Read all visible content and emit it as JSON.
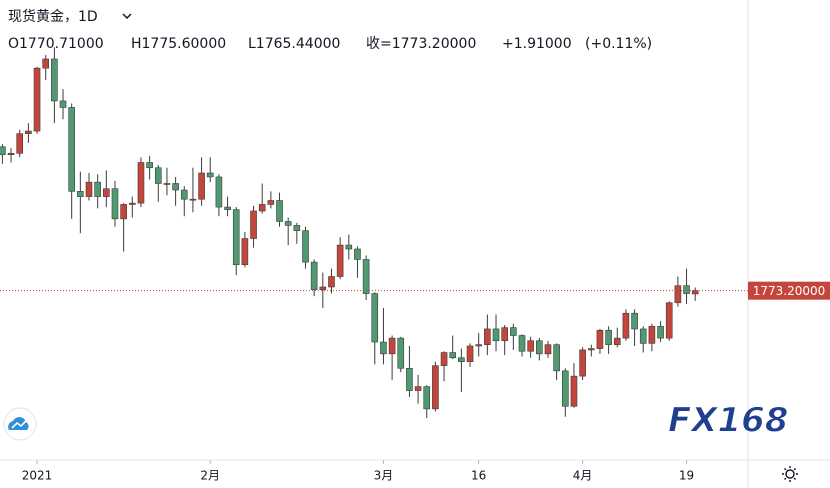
{
  "header": {
    "symbol": "现货黄金，1D",
    "open": "O1770.71000",
    "high": "H1775.60000",
    "low": "L1765.44000",
    "close": "收=1773.20000",
    "change": "+1.91000",
    "change_pct": "(+0.11%)"
  },
  "logo": "FX168",
  "chart_data": {
    "type": "candlestick",
    "categories": [
      null,
      null,
      null,
      null,
      "2021",
      null,
      null,
      null,
      null,
      null,
      null,
      null,
      null,
      null,
      null,
      null,
      null,
      null,
      null,
      null,
      null,
      null,
      null,
      null,
      "2月",
      null,
      null,
      null,
      null,
      null,
      null,
      null,
      null,
      null,
      null,
      null,
      null,
      null,
      null,
      null,
      null,
      null,
      null,
      null,
      "3月",
      null,
      null,
      null,
      null,
      null,
      null,
      null,
      null,
      null,
      null,
      "16",
      null,
      null,
      null,
      null,
      null,
      null,
      null,
      null,
      null,
      null,
      null,
      "4月",
      null,
      null,
      null,
      null,
      null,
      null,
      null,
      null,
      null,
      null,
      null,
      "19",
      null
    ],
    "open": [
      1883,
      1877,
      1878,
      1893,
      1895,
      1943,
      1950,
      1918,
      1913,
      1849,
      1845,
      1856,
      1845,
      1851,
      1828,
      1839,
      1840,
      1871,
      1867,
      1855,
      1855,
      1850,
      1843,
      1843,
      1863,
      1860,
      1837,
      1835,
      1793,
      1813,
      1834,
      1839,
      1842,
      1826,
      1823,
      1819,
      1795,
      1774,
      1776,
      1784,
      1808,
      1805,
      1797,
      1771,
      1734,
      1725,
      1737,
      1714,
      1697,
      1700,
      1683,
      1716,
      1726,
      1722,
      1719,
      1731,
      1732,
      1744,
      1735,
      1745,
      1739,
      1727,
      1735,
      1725,
      1732,
      1712,
      1685,
      1708,
      1728,
      1729,
      1743,
      1732,
      1737,
      1756,
      1744,
      1733,
      1746,
      1737,
      1764,
      1777,
      1770.71
    ],
    "high": [
      1885,
      1882,
      1896,
      1901,
      1944,
      1953,
      1959,
      1927,
      1916,
      1864,
      1863,
      1862,
      1865,
      1857,
      1840,
      1845,
      1875,
      1876,
      1869,
      1867,
      1860,
      1853,
      1867,
      1875,
      1875,
      1862,
      1845,
      1837,
      1818,
      1838,
      1855,
      1849,
      1848,
      1829,
      1825,
      1822,
      1797,
      1787,
      1790,
      1814,
      1816,
      1807,
      1800,
      1772,
      1760,
      1739,
      1738,
      1731,
      1709,
      1701,
      1719,
      1727,
      1739,
      1729,
      1733,
      1741,
      1755,
      1755,
      1747,
      1748,
      1740,
      1738,
      1737,
      1735,
      1733,
      1714,
      1718,
      1730,
      1732,
      1744,
      1746,
      1745,
      1759,
      1759,
      1746,
      1748,
      1750,
      1765,
      1784,
      1790,
      1775.6
    ],
    "low": [
      1870,
      1871,
      1875,
      1886,
      1893,
      1934,
      1901,
      1904,
      1828,
      1817,
      1842,
      1836,
      1837,
      1822,
      1803,
      1829,
      1837,
      1858,
      1841,
      1846,
      1838,
      1830,
      1833,
      1838,
      1856,
      1830,
      1830,
      1785,
      1791,
      1806,
      1832,
      1836,
      1822,
      1808,
      1809,
      1790,
      1769,
      1760,
      1771,
      1782,
      1797,
      1783,
      1766,
      1717,
      1717,
      1705,
      1711,
      1692,
      1687,
      1676,
      1681,
      1704,
      1721,
      1696,
      1715,
      1723,
      1724,
      1727,
      1724,
      1728,
      1723,
      1722,
      1720,
      1722,
      1705,
      1677,
      1684,
      1705,
      1723,
      1725,
      1725,
      1730,
      1735,
      1731,
      1726,
      1727,
      1734,
      1735,
      1761,
      1763,
      1765.44
    ],
    "close": [
      1877,
      1878,
      1893,
      1895,
      1943,
      1950,
      1918,
      1913,
      1849,
      1845,
      1856,
      1845,
      1851,
      1828,
      1839,
      1840,
      1871,
      1867,
      1855,
      1855,
      1850,
      1843,
      1843,
      1863,
      1860,
      1837,
      1835,
      1793,
      1813,
      1834,
      1839,
      1842,
      1826,
      1823,
      1819,
      1795,
      1774,
      1776,
      1784,
      1808,
      1805,
      1797,
      1771,
      1734,
      1725,
      1737,
      1714,
      1697,
      1700,
      1683,
      1716,
      1726,
      1722,
      1719,
      1731,
      1732,
      1744,
      1735,
      1745,
      1739,
      1727,
      1735,
      1725,
      1732,
      1712,
      1685,
      1708,
      1728,
      1729,
      1743,
      1732,
      1737,
      1756,
      1744,
      1733,
      1746,
      1737,
      1764,
      1777,
      1771,
      1773.2
    ],
    "up_color": "#c4453a",
    "down_color": "#4f9a70",
    "ylim": [
      1644,
      1995
    ],
    "last_price": {
      "value": 1773.2,
      "label": "1773.20000"
    }
  }
}
